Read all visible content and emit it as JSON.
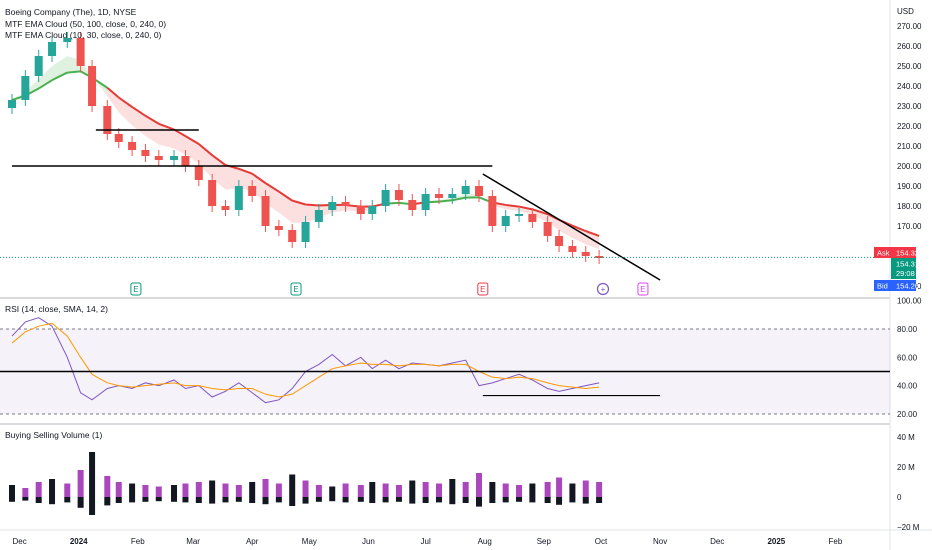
{
  "header": {
    "symbol_title": "Boeing Company (The), 1D, NYSE",
    "indicator_1": "MTF EMA Cloud (50, 100, close, 0, 240, 0)",
    "indicator_2": "MTF EMA Cloud (10, 30, close, 0, 240, 0)",
    "currency": "USD"
  },
  "price_axis": {
    "ticks": [
      "270.00",
      "260.00",
      "250.00",
      "240.00",
      "230.00",
      "220.00",
      "210.00",
      "200.00",
      "190.00",
      "180.00",
      "170.00",
      "140.00"
    ],
    "ask_label": "Ask",
    "ask_value": "154.32",
    "last_value": "154.31",
    "countdown": "29:08",
    "bid_label": "Bid",
    "bid_value": "154.26"
  },
  "rsi_pane": {
    "title": "RSI (14, close, SMA, 14, 2)",
    "ticks": [
      "100.00",
      "80.00",
      "60.00",
      "40.00",
      "20.00"
    ]
  },
  "volume_pane": {
    "title": "Buying Selling Volume (1)",
    "ticks": [
      "40 M",
      "20 M",
      "0",
      "−20 M"
    ]
  },
  "time_axis": [
    "Dec",
    "2024",
    "Feb",
    "Mar",
    "Apr",
    "May",
    "Jun",
    "Jul",
    "Aug",
    "Sep",
    "Oct",
    "Nov",
    "Dec",
    "2025",
    "Feb"
  ],
  "earnings_markers": [
    "E",
    "E",
    "E",
    "E"
  ],
  "colors": {
    "bull_candle": "#26a69a",
    "bear_candle": "#ef5350",
    "ema_green": "#4caf50",
    "ema_red": "#e53935",
    "rsi_line": "#7e57c2",
    "rsi_sma": "#ff9800",
    "ask_bg": "#f23645",
    "last_bg": "#089981",
    "bid_bg": "#2962ff",
    "volume_bar": "#ab47bc"
  },
  "chart_data": [
    {
      "type": "candlestick",
      "title": "Boeing Company (The), 1D, NYSE",
      "ylim": [
        140,
        272
      ],
      "x": [
        "2023-11-27",
        "2023-12-04",
        "2023-12-11",
        "2023-12-18",
        "2023-12-26",
        "2024-01-02",
        "2024-01-08",
        "2024-01-16",
        "2024-01-22",
        "2024-01-29",
        "2024-02-05",
        "2024-02-12",
        "2024-02-20",
        "2024-02-26",
        "2024-03-04",
        "2024-03-11",
        "2024-03-18",
        "2024-03-25",
        "2024-04-01",
        "2024-04-08",
        "2024-04-15",
        "2024-04-22",
        "2024-04-29",
        "2024-05-06",
        "2024-05-13",
        "2024-05-20",
        "2024-05-28",
        "2024-06-03",
        "2024-06-10",
        "2024-06-17",
        "2024-06-24",
        "2024-07-01",
        "2024-07-08",
        "2024-07-15",
        "2024-07-22",
        "2024-07-29",
        "2024-08-05",
        "2024-08-12",
        "2024-08-19",
        "2024-08-26",
        "2024-09-03",
        "2024-09-09",
        "2024-09-16",
        "2024-09-23",
        "2024-09-30"
      ],
      "close": [
        233,
        245,
        255,
        262,
        264,
        250,
        230,
        216,
        212,
        208,
        205,
        203,
        205,
        200,
        193,
        180,
        178,
        190,
        185,
        170,
        168,
        162,
        172,
        178,
        182,
        180,
        176,
        180,
        188,
        183,
        178,
        186,
        184,
        186,
        190,
        185,
        170,
        175,
        176,
        172,
        165,
        160,
        157,
        155,
        154
      ],
      "support_lines": [
        {
          "level": 218,
          "from": "2024-01-10",
          "to": "2024-03-04"
        },
        {
          "level": 200,
          "from": "2023-11-27",
          "to": "2024-08-05"
        }
      ],
      "trend_line": {
        "from": [
          "2024-07-31",
          196
        ],
        "to": [
          "2024-11-01",
          143
        ]
      },
      "last_price": 154.31
    },
    {
      "type": "line",
      "title": "RSI (14, close, SMA, 14, 2)",
      "ylim": [
        15,
        100
      ],
      "series": [
        {
          "values": [
            75,
            85,
            88,
            82,
            60,
            35,
            30,
            38,
            40,
            38,
            42,
            40,
            44,
            38,
            40,
            32,
            36,
            42,
            35,
            28,
            30,
            38,
            50,
            55,
            62,
            54,
            60,
            52,
            58,
            52,
            56,
            55,
            54,
            56,
            58,
            40,
            42,
            45,
            48,
            44,
            38,
            36,
            38,
            40,
            42
          ]
        },
        {
          "values": [
            70,
            78,
            82,
            84,
            75,
            60,
            48,
            42,
            40,
            39,
            40,
            41,
            42,
            40,
            40,
            38,
            37,
            38,
            38,
            34,
            32,
            34,
            40,
            46,
            52,
            54,
            56,
            55,
            55,
            54,
            55,
            55,
            54,
            55,
            55,
            50,
            46,
            45,
            46,
            45,
            42,
            40,
            39,
            38,
            39
          ]
        }
      ],
      "hlines": [
        {
          "level": 50
        },
        {
          "level": 33,
          "from": "2024-07-31",
          "to": "2024-11-01"
        }
      ]
    },
    {
      "type": "bar",
      "title": "Buying Selling Volume (1)",
      "ylim": [
        -22,
        42
      ],
      "values": [
        8,
        6,
        10,
        12,
        9,
        18,
        30,
        14,
        10,
        9,
        8,
        7,
        8,
        9,
        10,
        11,
        9,
        8,
        10,
        12,
        9,
        15,
        11,
        8,
        7,
        9,
        8,
        10,
        9,
        8,
        11,
        10,
        9,
        12,
        10,
        16,
        10,
        9,
        8,
        9,
        10,
        13,
        9,
        11,
        10
      ]
    }
  ]
}
